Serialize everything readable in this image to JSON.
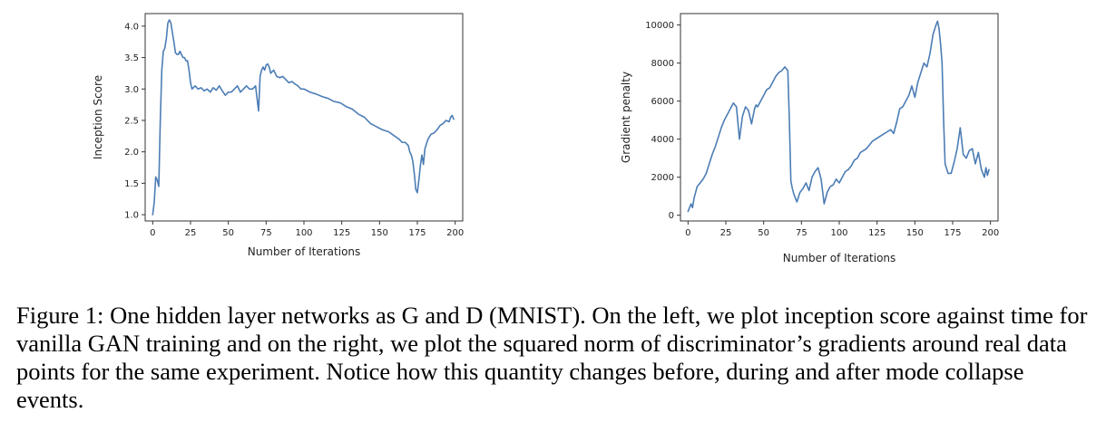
{
  "chart_data": [
    {
      "type": "line",
      "title": "",
      "xlabel": "Number of Iterations",
      "ylabel": "Inception Score",
      "xlim": [
        -5,
        205
      ],
      "ylim": [
        0.9,
        4.2
      ],
      "xticks": [
        0,
        25,
        50,
        75,
        100,
        125,
        150,
        175,
        200
      ],
      "yticks": [
        1.0,
        1.5,
        2.0,
        2.5,
        3.0,
        3.5,
        4.0
      ],
      "xtick_labels": [
        "0",
        "25",
        "50",
        "75",
        "100",
        "125",
        "150",
        "175",
        "200"
      ],
      "ytick_labels": [
        "1.0",
        "1.5",
        "2.0",
        "2.5",
        "3.0",
        "3.5",
        "4.0"
      ],
      "grid": false,
      "series": [
        {
          "name": "Inception Score",
          "color": "#4c7db5",
          "x": [
            0,
            1,
            2,
            3,
            4,
            5,
            6,
            7,
            8,
            9,
            10,
            11,
            12,
            13,
            14,
            15,
            16,
            17,
            18,
            19,
            20,
            21,
            22,
            23,
            24,
            25,
            26,
            28,
            30,
            32,
            34,
            36,
            38,
            40,
            42,
            44,
            46,
            48,
            50,
            52,
            54,
            56,
            58,
            60,
            62,
            64,
            66,
            68,
            69,
            70,
            71,
            72,
            73,
            74,
            75,
            76,
            77,
            78,
            80,
            82,
            84,
            86,
            88,
            90,
            92,
            94,
            96,
            98,
            100,
            104,
            108,
            112,
            116,
            120,
            124,
            128,
            132,
            136,
            140,
            144,
            148,
            152,
            156,
            160,
            163,
            165,
            167,
            169,
            170,
            171,
            172,
            173,
            174,
            175,
            176,
            177,
            178,
            179,
            180,
            182,
            184,
            186,
            188,
            190,
            192,
            194,
            196,
            197,
            198,
            199
          ],
          "y": [
            1.0,
            1.2,
            1.6,
            1.55,
            1.45,
            2.5,
            3.3,
            3.6,
            3.65,
            3.8,
            4.05,
            4.1,
            4.05,
            3.9,
            3.75,
            3.58,
            3.55,
            3.55,
            3.6,
            3.55,
            3.5,
            3.5,
            3.45,
            3.45,
            3.3,
            3.1,
            3.0,
            3.05,
            3.0,
            3.02,
            2.97,
            3.0,
            2.95,
            3.02,
            2.98,
            3.05,
            2.97,
            2.9,
            2.95,
            2.95,
            3.0,
            3.05,
            2.95,
            3.0,
            3.05,
            3.0,
            3.0,
            3.05,
            2.85,
            2.65,
            3.2,
            3.3,
            3.35,
            3.3,
            3.38,
            3.4,
            3.35,
            3.25,
            3.3,
            3.2,
            3.18,
            3.2,
            3.15,
            3.1,
            3.12,
            3.08,
            3.05,
            3.0,
            3.0,
            2.95,
            2.92,
            2.88,
            2.85,
            2.8,
            2.78,
            2.72,
            2.68,
            2.6,
            2.55,
            2.45,
            2.4,
            2.35,
            2.32,
            2.25,
            2.2,
            2.15,
            2.15,
            2.1,
            2.0,
            1.95,
            1.85,
            1.65,
            1.4,
            1.35,
            1.55,
            1.78,
            1.95,
            1.8,
            2.05,
            2.2,
            2.28,
            2.3,
            2.35,
            2.42,
            2.45,
            2.5,
            2.48,
            2.55,
            2.58,
            2.52
          ]
        }
      ]
    },
    {
      "type": "line",
      "title": "",
      "xlabel": "Number of Iterations",
      "ylabel": "Gradient penalty",
      "xlim": [
        -5,
        205
      ],
      "ylim": [
        -300,
        10600
      ],
      "xticks": [
        0,
        25,
        50,
        75,
        100,
        125,
        150,
        175,
        200
      ],
      "yticks": [
        0,
        2000,
        4000,
        6000,
        8000,
        10000
      ],
      "xtick_labels": [
        "0",
        "25",
        "50",
        "75",
        "100",
        "125",
        "150",
        "175",
        "200"
      ],
      "ytick_labels": [
        "0",
        "2000",
        "4000",
        "6000",
        "8000",
        "10000"
      ],
      "grid": false,
      "series": [
        {
          "name": "Gradient penalty",
          "color": "#4c7db5",
          "x": [
            0,
            2,
            3,
            4,
            6,
            8,
            10,
            12,
            14,
            16,
            18,
            20,
            22,
            24,
            26,
            28,
            30,
            32,
            34,
            35,
            36,
            38,
            40,
            42,
            44,
            45,
            46,
            48,
            50,
            52,
            54,
            56,
            58,
            60,
            62,
            64,
            66,
            67,
            68,
            69,
            70,
            72,
            74,
            76,
            78,
            80,
            82,
            84,
            86,
            88,
            90,
            92,
            94,
            96,
            98,
            100,
            102,
            104,
            106,
            108,
            110,
            112,
            114,
            116,
            118,
            120,
            122,
            124,
            126,
            128,
            130,
            132,
            134,
            136,
            138,
            140,
            142,
            144,
            146,
            148,
            150,
            152,
            154,
            156,
            158,
            160,
            162,
            164,
            165,
            166,
            167,
            168,
            169,
            170,
            172,
            174,
            176,
            178,
            180,
            182,
            184,
            186,
            188,
            190,
            192,
            194,
            196,
            197,
            198,
            199
          ],
          "y": [
            200,
            600,
            400,
            900,
            1500,
            1700,
            1900,
            2200,
            2700,
            3200,
            3600,
            4100,
            4600,
            5000,
            5300,
            5600,
            5900,
            5700,
            4000,
            4600,
            5200,
            5700,
            5500,
            4800,
            5600,
            5800,
            5700,
            6000,
            6300,
            6600,
            6700,
            7000,
            7300,
            7500,
            7600,
            7800,
            7600,
            5000,
            1800,
            1400,
            1100,
            700,
            1200,
            1400,
            1700,
            1300,
            2000,
            2300,
            2500,
            1900,
            600,
            1200,
            1500,
            1600,
            1900,
            1700,
            2000,
            2300,
            2400,
            2600,
            2900,
            3000,
            3300,
            3400,
            3500,
            3700,
            3900,
            4000,
            4100,
            4200,
            4300,
            4400,
            4500,
            4300,
            4900,
            5600,
            5700,
            6000,
            6300,
            6800,
            6200,
            7000,
            7500,
            8000,
            7800,
            8500,
            9500,
            10000,
            10200,
            9800,
            9000,
            8000,
            5000,
            2700,
            2200,
            2200,
            2800,
            3500,
            4600,
            3200,
            3000,
            3400,
            3500,
            2700,
            3300,
            2400,
            2000,
            2500,
            2100,
            2400
          ]
        }
      ]
    }
  ],
  "caption": {
    "figure_number": "Figure 1:",
    "text": "One hidden layer networks as G and D (MNIST). On the left, we plot inception score against time for vanilla GAN training and on the right, we plot the squared norm of discriminator’s gradients around real data points for the same experiment. Notice how this quantity changes before, during and after mode collapse events."
  }
}
